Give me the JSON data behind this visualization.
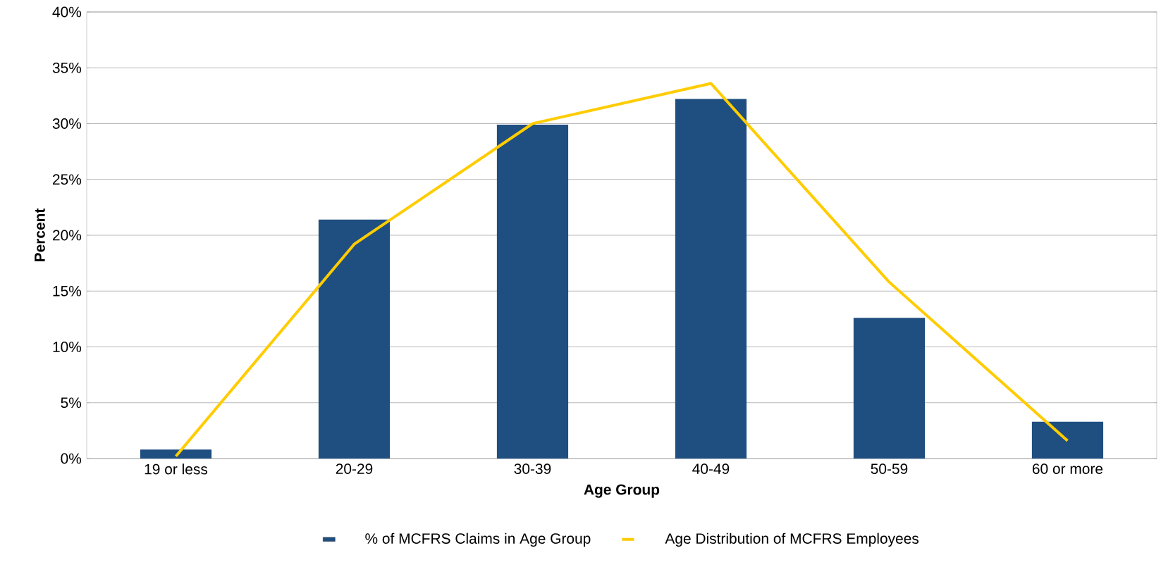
{
  "chart_data": {
    "type": "bar",
    "xlabel": "Age Group",
    "ylabel": "Percent",
    "categories": [
      "19 or less",
      "20-29",
      "30-39",
      "40-49",
      "50-59",
      "60 or more"
    ],
    "series": [
      {
        "name": "% of MCFRS Claims in Age Group",
        "color": "#1f4e80",
        "values": [
          0.8,
          21.4,
          29.9,
          32.2,
          12.6,
          3.3
        ]
      },
      {
        "name": "Age Distribution of MCFRS Employees",
        "type": "line",
        "color": "#ffcc00",
        "values": [
          0.2,
          19.2,
          30.0,
          33.6,
          15.8,
          1.6
        ]
      }
    ],
    "ylim": [
      0,
      40
    ],
    "yticks": [
      {
        "value": 0,
        "label": "0%"
      },
      {
        "value": 5,
        "label": "5%"
      },
      {
        "value": 10,
        "label": "10%"
      },
      {
        "value": 15,
        "label": "15%"
      },
      {
        "value": 20,
        "label": "20%"
      },
      {
        "value": 25,
        "label": "25%"
      },
      {
        "value": 30,
        "label": "30%"
      },
      {
        "value": 35,
        "label": "35%"
      },
      {
        "value": 40,
        "label": "40%"
      }
    ],
    "grid": "y",
    "legend": "bottom",
    "marker": "none"
  }
}
